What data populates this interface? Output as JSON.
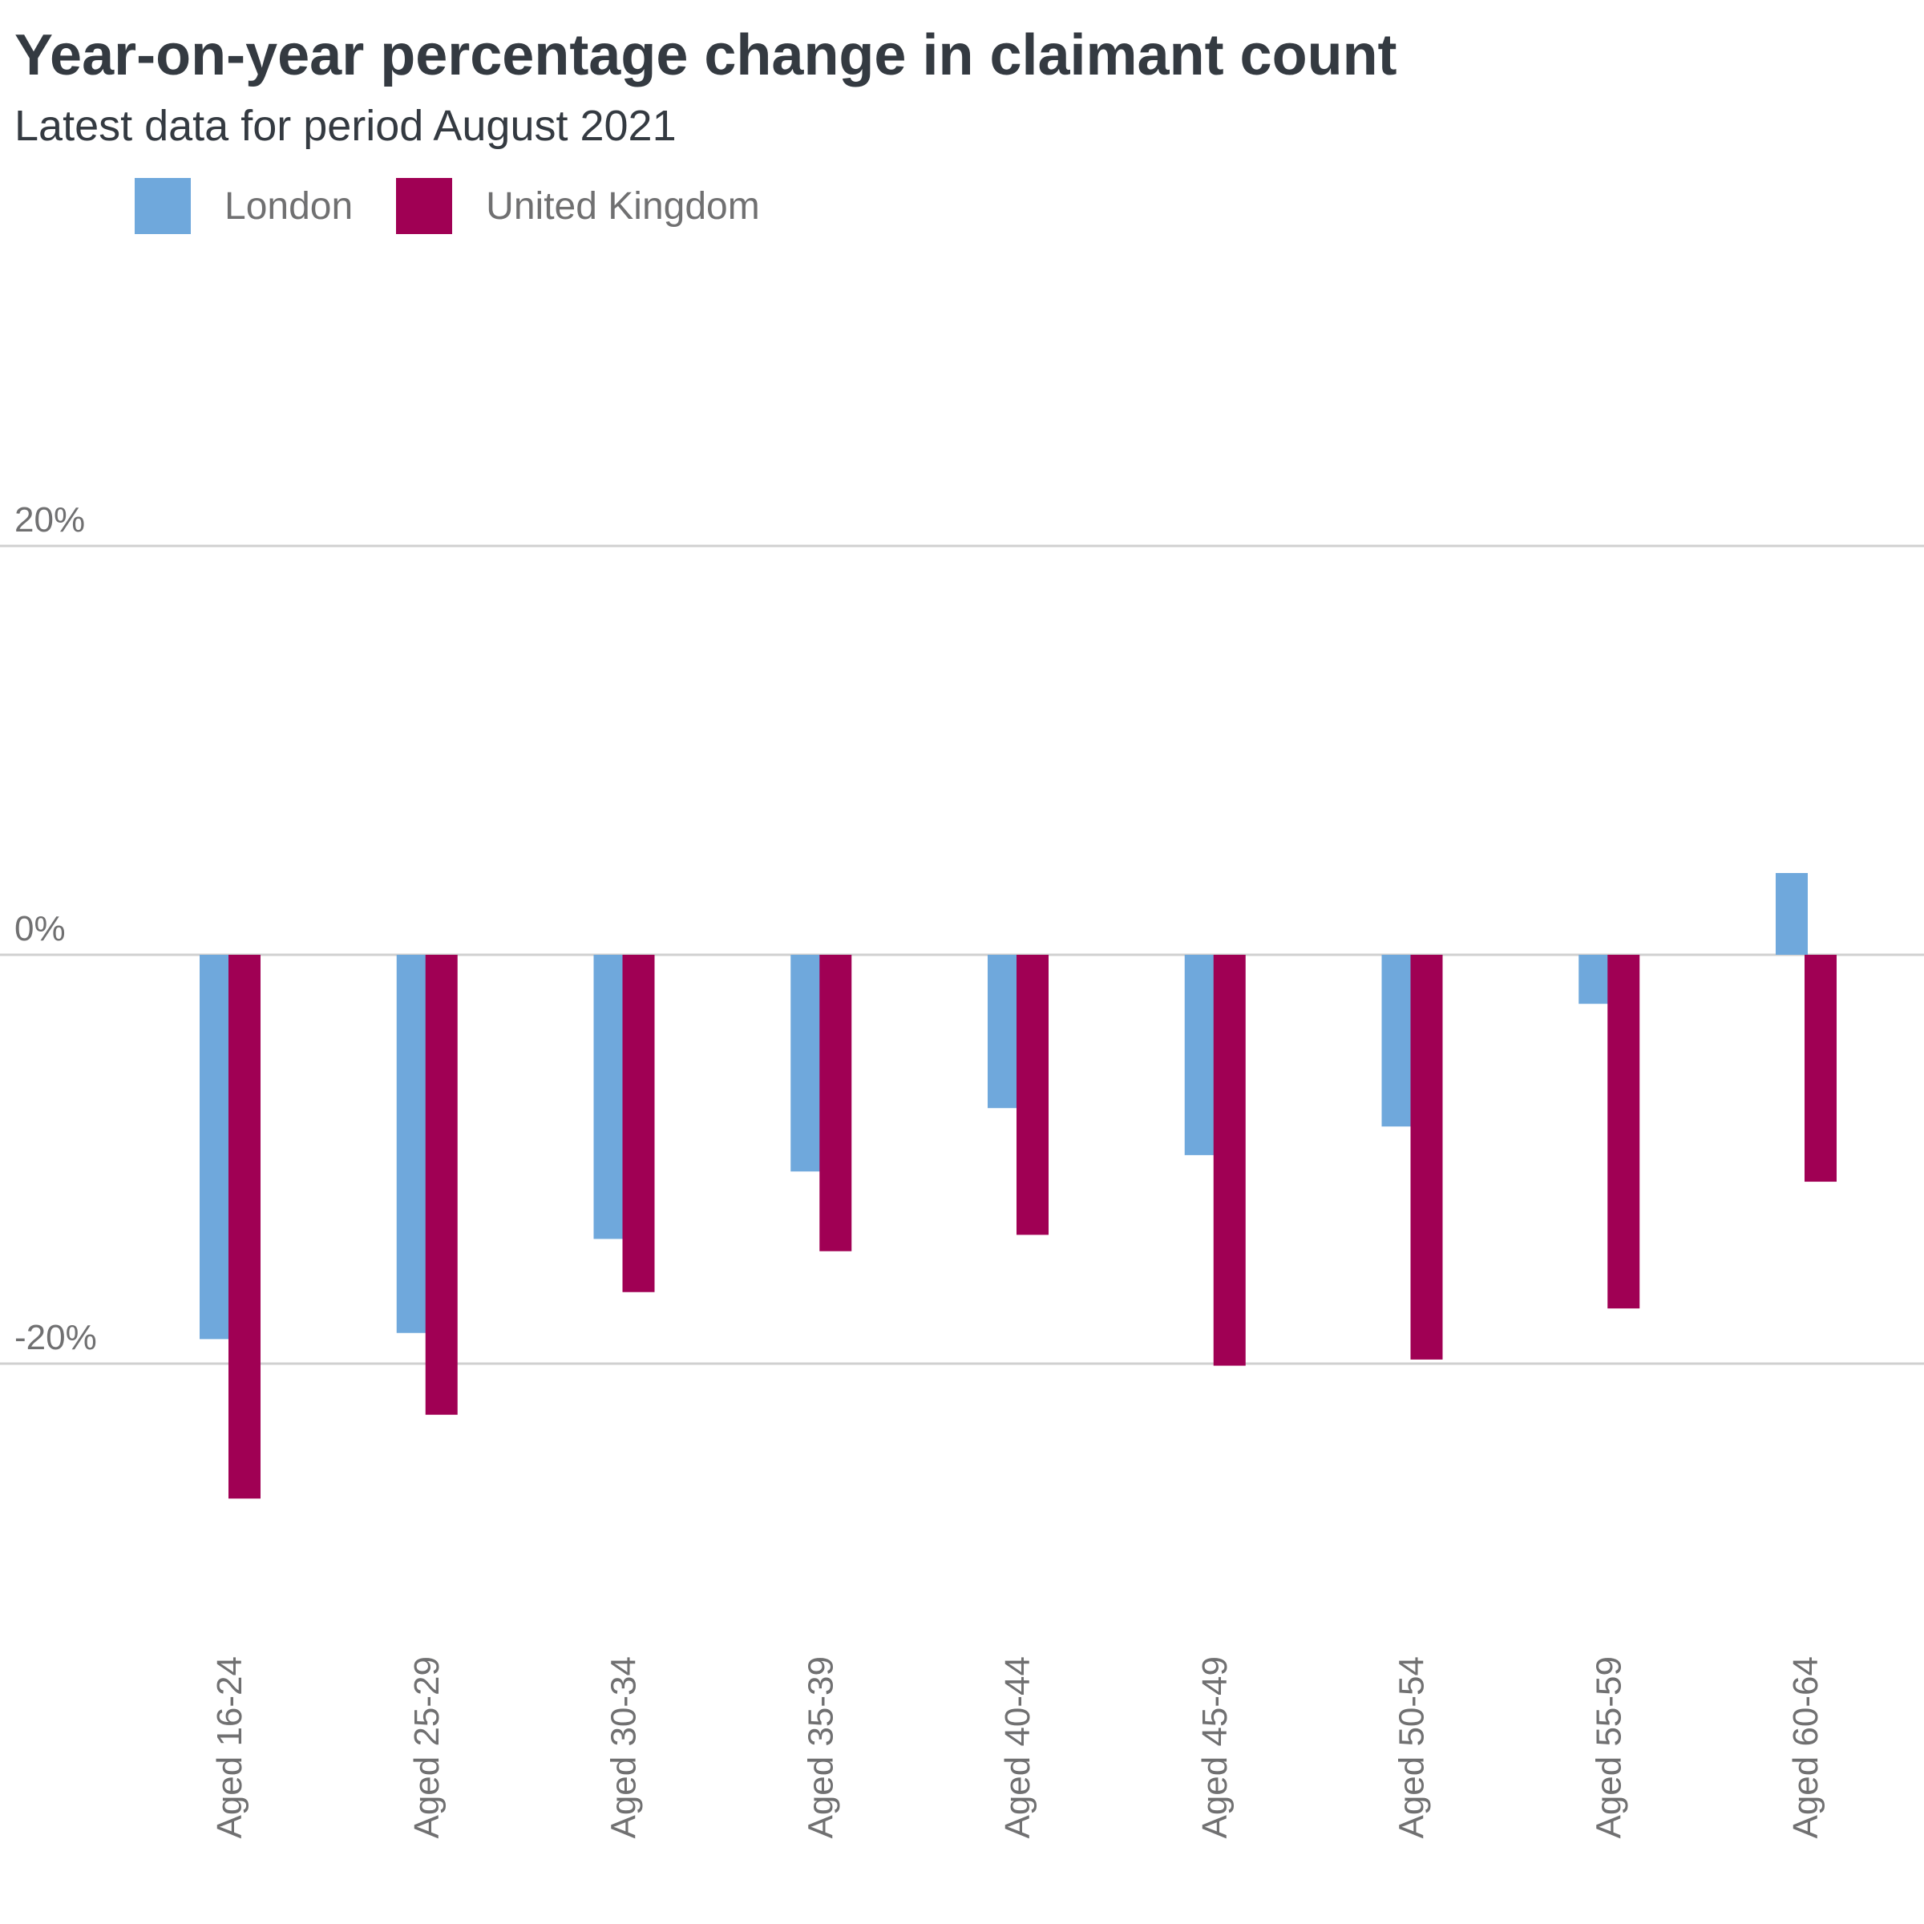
{
  "chart_data": {
    "type": "bar",
    "title": "Year-on-year percentage change in claimant count",
    "subtitle": "Latest data for period August 2021",
    "xlabel": "",
    "ylabel": "",
    "categories": [
      "Aged 16-24",
      "Aged 25-29",
      "Aged 30-34",
      "Aged 35-39",
      "Aged 40-44",
      "Aged 45-49",
      "Aged 50-54",
      "Aged 55-59",
      "Aged 60-64"
    ],
    "series": [
      {
        "name": "London",
        "color": "#6fa8dc",
        "values": [
          -18.8,
          -18.5,
          -13.9,
          -10.6,
          -7.5,
          -9.8,
          -8.4,
          -2.4,
          4.0
        ]
      },
      {
        "name": "United Kingdom",
        "color": "#a00054",
        "values": [
          -26.6,
          -22.5,
          -16.5,
          -14.5,
          -13.7,
          -20.1,
          -19.8,
          -17.3,
          -11.1
        ]
      }
    ],
    "ylim": [
      -30,
      40
    ],
    "yticks": [
      -20,
      0,
      20
    ],
    "ytick_labels": [
      "-20%",
      "0%",
      "20%"
    ],
    "grid": true,
    "legend_position": "top-left"
  }
}
